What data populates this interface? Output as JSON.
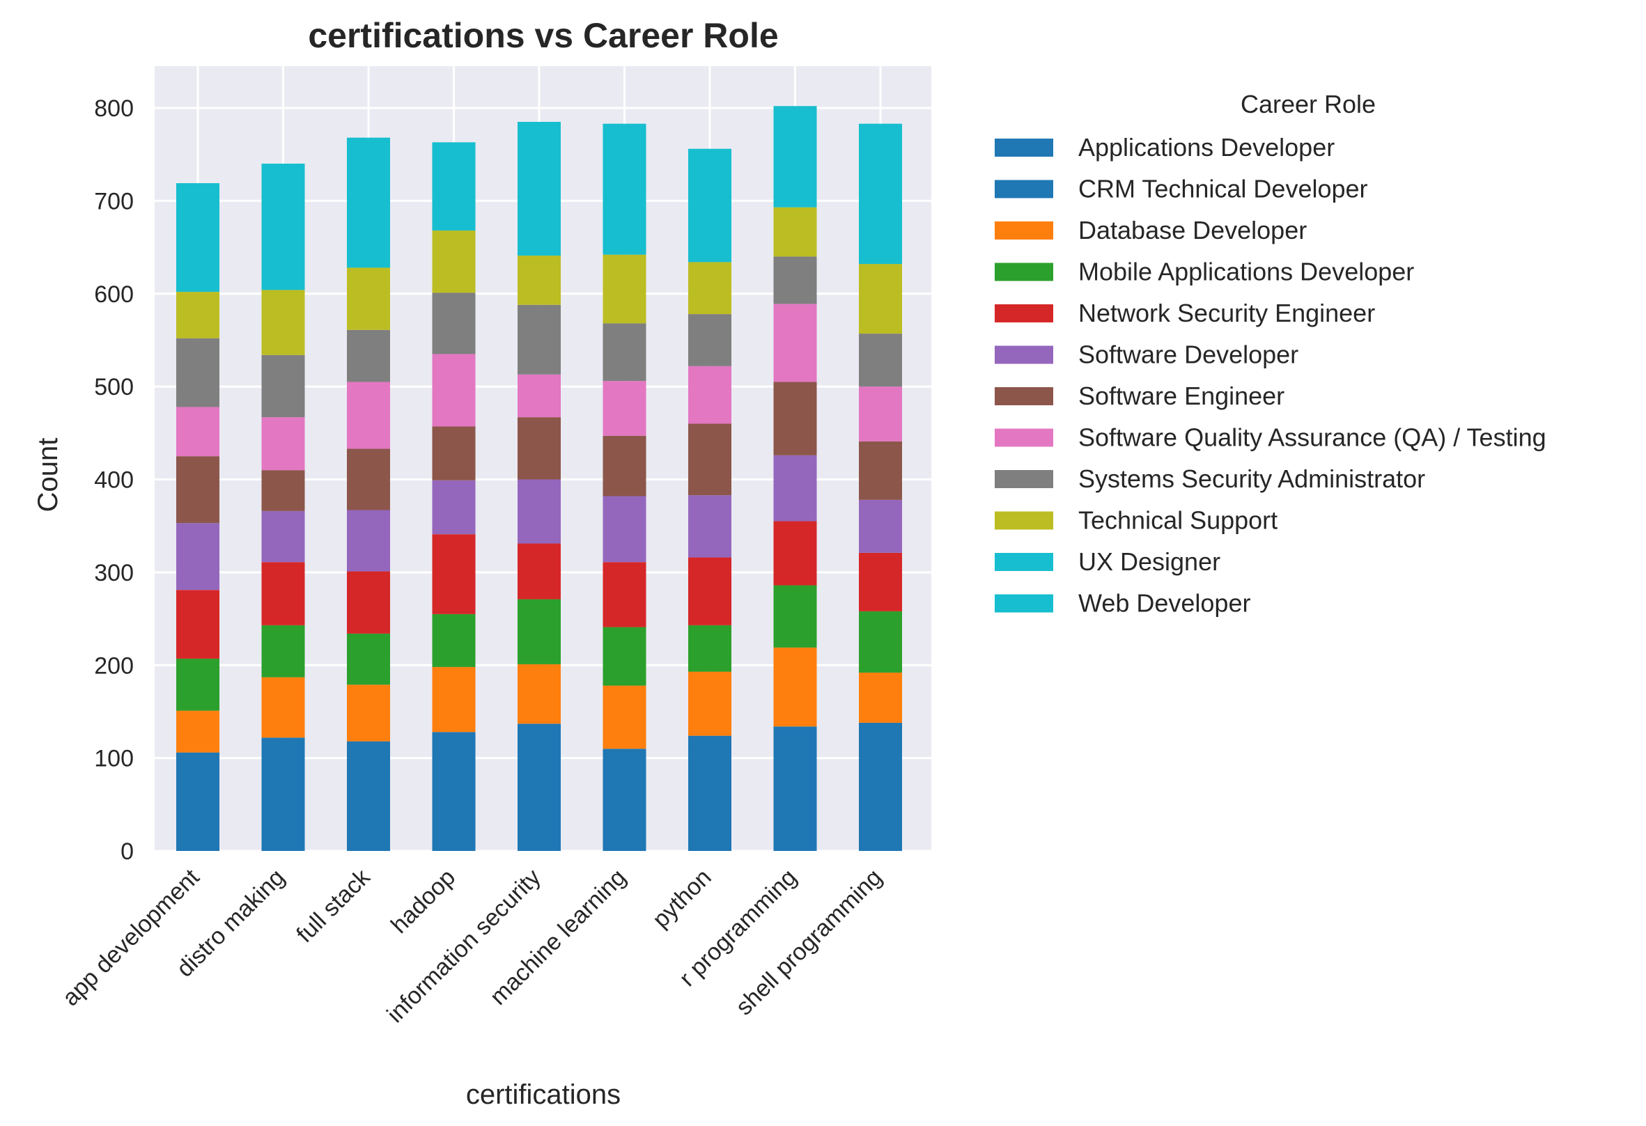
{
  "chart_data": {
    "type": "bar",
    "stacked": true,
    "title": "certifications vs Career Role",
    "xlabel": "certifications",
    "ylabel": "Count",
    "ylim": [
      0,
      845
    ],
    "yticks": [
      0,
      100,
      200,
      300,
      400,
      500,
      600,
      700,
      800
    ],
    "grid": true,
    "legend_title": "Career Role",
    "legend_position": "outside-right",
    "categories": [
      "app development",
      "distro making",
      "full stack",
      "hadoop",
      "information security",
      "machine learning",
      "python",
      "r programming",
      "shell programming"
    ],
    "series": [
      {
        "name": "Applications Developer",
        "color": "#1f77b4",
        "values": [
          106,
          122,
          118,
          128,
          137,
          110,
          124,
          134,
          138
        ]
      },
      {
        "name": "CRM Technical Developer",
        "color": "#1f77b4",
        "values": [
          0,
          0,
          0,
          0,
          0,
          0,
          0,
          0,
          0
        ]
      },
      {
        "name": "Database Developer",
        "color": "#ff7f0e",
        "values": [
          45,
          65,
          61,
          70,
          64,
          68,
          69,
          85,
          54
        ]
      },
      {
        "name": "Mobile Applications Developer",
        "color": "#2ca02c",
        "values": [
          56,
          56,
          55,
          57,
          70,
          63,
          50,
          67,
          66
        ]
      },
      {
        "name": "Network Security Engineer",
        "color": "#d62728",
        "values": [
          74,
          68,
          67,
          86,
          60,
          70,
          73,
          69,
          63
        ]
      },
      {
        "name": "Software Developer",
        "color": "#9467bd",
        "values": [
          72,
          55,
          66,
          58,
          69,
          71,
          67,
          71,
          57
        ]
      },
      {
        "name": "Software Engineer",
        "color": "#8c564b",
        "values": [
          72,
          44,
          66,
          58,
          67,
          65,
          77,
          79,
          63
        ]
      },
      {
        "name": "Software Quality Assurance (QA) / Testing",
        "color": "#e377c2",
        "values": [
          53,
          57,
          72,
          78,
          46,
          59,
          62,
          84,
          59
        ]
      },
      {
        "name": "Systems Security Administrator",
        "color": "#7f7f7f",
        "values": [
          74,
          67,
          56,
          66,
          75,
          62,
          56,
          51,
          57
        ]
      },
      {
        "name": "Technical Support",
        "color": "#bcbd22",
        "values": [
          50,
          70,
          67,
          67,
          53,
          74,
          56,
          53,
          75
        ]
      },
      {
        "name": "UX Designer",
        "color": "#17becf",
        "values": [
          117,
          136,
          140,
          95,
          144,
          141,
          122,
          109,
          151
        ]
      },
      {
        "name": "Web Developer",
        "color": "#17becf",
        "values": [
          0,
          0,
          0,
          0,
          0,
          0,
          0,
          0,
          0
        ]
      }
    ]
  }
}
